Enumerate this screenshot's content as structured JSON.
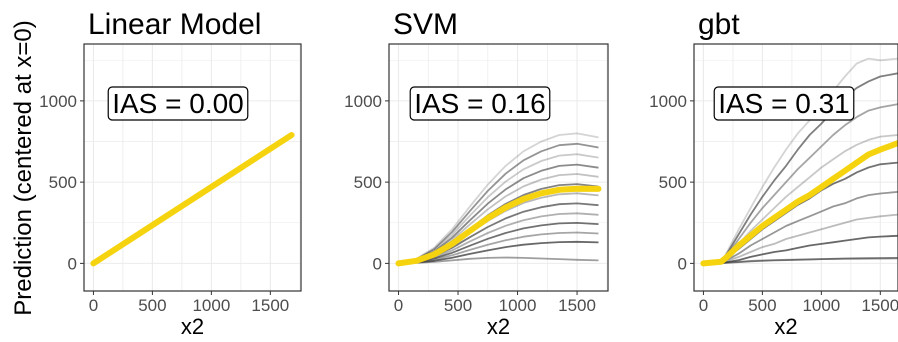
{
  "figure": {
    "shared_ylabel": "Prediction (centered at x=0)",
    "colors": {
      "highlight": "#f5d40f",
      "ice_line": "#3a3a3a",
      "grid": "#ebebeb",
      "panel_border": "#333333",
      "text": "#000000",
      "tick_text": "#4d4d4d"
    }
  },
  "chart_data": [
    {
      "type": "line",
      "title": "Linear Model",
      "annotation": "IAS = 0.00",
      "xlabel": "x2",
      "ylabel": "Prediction (centered at x=0)",
      "xlim": [
        -80,
        1760
      ],
      "ylim": [
        -170,
        1350
      ],
      "xticks": [
        0,
        500,
        1000,
        1500
      ],
      "yticks": [
        0,
        500,
        1000
      ],
      "grid": true,
      "series": [
        {
          "role": "average",
          "x": [
            0,
            1680
          ],
          "y": [
            0,
            790
          ]
        }
      ]
    },
    {
      "type": "line",
      "title": "SVM",
      "annotation": "IAS = 0.16",
      "xlabel": "x2",
      "ylabel": "",
      "xlim": [
        -80,
        1760
      ],
      "ylim": [
        -170,
        1350
      ],
      "xticks": [
        0,
        500,
        1000,
        1500
      ],
      "yticks": [
        0,
        500,
        1000
      ],
      "grid": true,
      "series": [
        {
          "role": "ice",
          "x": [
            0,
            150,
            300,
            450,
            600,
            750,
            900,
            1050,
            1200,
            1350,
            1500,
            1680
          ],
          "y": [
            0,
            28,
            96,
            210,
            350,
            485,
            600,
            690,
            750,
            790,
            800,
            775
          ]
        },
        {
          "role": "ice",
          "x": [
            0,
            150,
            300,
            450,
            600,
            750,
            900,
            1050,
            1200,
            1350,
            1500,
            1680
          ],
          "y": [
            0,
            25,
            88,
            193,
            322,
            446,
            552,
            634,
            690,
            727,
            736,
            713
          ]
        },
        {
          "role": "ice",
          "x": [
            0,
            150,
            300,
            450,
            600,
            750,
            900,
            1050,
            1200,
            1350,
            1500,
            1680
          ],
          "y": [
            0,
            23,
            80,
            175,
            294,
            407,
            503,
            579,
            630,
            663,
            672,
            651
          ]
        },
        {
          "role": "ice",
          "x": [
            0,
            150,
            300,
            450,
            600,
            750,
            900,
            1050,
            1200,
            1350,
            1500,
            1680
          ],
          "y": [
            0,
            21,
            72,
            158,
            265,
            368,
            455,
            524,
            570,
            600,
            608,
            589
          ]
        },
        {
          "role": "ice",
          "x": [
            0,
            150,
            300,
            450,
            600,
            750,
            900,
            1050,
            1200,
            1350,
            1500,
            1680
          ],
          "y": [
            0,
            19,
            65,
            143,
            240,
            333,
            412,
            474,
            516,
            543,
            550,
            533
          ]
        },
        {
          "role": "ice",
          "x": [
            0,
            150,
            300,
            450,
            600,
            750,
            900,
            1050,
            1200,
            1350,
            1500,
            1680
          ],
          "y": [
            0,
            17,
            58,
            127,
            213,
            296,
            366,
            421,
            458,
            482,
            488,
            473
          ]
        },
        {
          "role": "ice",
          "x": [
            0,
            150,
            300,
            450,
            600,
            750,
            900,
            1050,
            1200,
            1350,
            1500,
            1680
          ],
          "y": [
            0,
            15,
            51,
            112,
            188,
            261,
            323,
            372,
            404,
            425,
            431,
            418
          ]
        },
        {
          "role": "ice",
          "x": [
            0,
            150,
            300,
            450,
            600,
            750,
            900,
            1050,
            1200,
            1350,
            1500,
            1680
          ],
          "y": [
            0,
            13,
            44,
            96,
            161,
            224,
            277,
            318,
            346,
            364,
            369,
            358
          ]
        },
        {
          "role": "ice",
          "x": [
            0,
            150,
            300,
            450,
            600,
            750,
            900,
            1050,
            1200,
            1350,
            1500,
            1680
          ],
          "y": [
            0,
            11,
            37,
            80,
            135,
            187,
            231,
            266,
            289,
            304,
            308,
            299
          ]
        },
        {
          "role": "ice",
          "x": [
            0,
            150,
            300,
            450,
            600,
            750,
            900,
            1050,
            1200,
            1350,
            1500,
            1680
          ],
          "y": [
            0,
            9,
            30,
            65,
            109,
            151,
            187,
            215,
            234,
            246,
            249,
            242
          ]
        },
        {
          "role": "ice",
          "x": [
            0,
            150,
            300,
            450,
            600,
            750,
            900,
            1050,
            1200,
            1350,
            1500,
            1680
          ],
          "y": [
            0,
            7,
            23,
            50,
            83,
            115,
            142,
            164,
            178,
            187,
            190,
            184
          ]
        },
        {
          "role": "ice",
          "x": [
            0,
            150,
            300,
            450,
            600,
            750,
            900,
            1050,
            1200,
            1350,
            1500,
            1680
          ],
          "y": [
            0,
            5,
            16,
            35,
            58,
            80,
            100,
            115,
            125,
            131,
            133,
            129
          ]
        },
        {
          "role": "ice",
          "x": [
            0,
            150,
            300,
            450,
            600,
            750,
            900,
            1050,
            1200,
            1350,
            1500,
            1680
          ],
          "y": [
            0,
            3,
            9,
            18,
            28,
            34,
            36,
            34,
            30,
            26,
            22,
            18
          ]
        },
        {
          "role": "average",
          "x": [
            0,
            150,
            300,
            450,
            600,
            750,
            900,
            1050,
            1200,
            1350,
            1500,
            1680
          ],
          "y": [
            0,
            16,
            55,
            120,
            200,
            278,
            344,
            396,
            431,
            453,
            459,
            458
          ]
        }
      ]
    },
    {
      "type": "line",
      "title": "gbt",
      "annotation": "IAS = 0.31",
      "xlabel": "x2",
      "ylabel": "",
      "xlim": [
        -80,
        1650
      ],
      "ylim": [
        -170,
        1350
      ],
      "xticks": [
        0,
        500,
        1000,
        1500
      ],
      "yticks": [
        0,
        500,
        1000
      ],
      "grid": true,
      "series": [
        {
          "role": "ice",
          "x": [
            0,
            150,
            200,
            300,
            400,
            500,
            600,
            700,
            800,
            900,
            1000,
            1100,
            1200,
            1300,
            1400,
            1500,
            1650
          ],
          "y": [
            0,
            10,
            70,
            210,
            340,
            470,
            590,
            700,
            800,
            880,
            960,
            1060,
            1150,
            1230,
            1260,
            1250,
            1260
          ]
        },
        {
          "role": "ice",
          "x": [
            0,
            150,
            200,
            300,
            400,
            500,
            600,
            700,
            800,
            900,
            1000,
            1100,
            1200,
            1300,
            1400,
            1500,
            1650
          ],
          "y": [
            0,
            8,
            60,
            180,
            300,
            410,
            510,
            600,
            700,
            790,
            860,
            940,
            1020,
            1080,
            1120,
            1150,
            1170
          ]
        },
        {
          "role": "ice",
          "x": [
            0,
            150,
            200,
            300,
            400,
            500,
            600,
            700,
            800,
            900,
            1000,
            1100,
            1200,
            1300,
            1400,
            1500,
            1650
          ],
          "y": [
            0,
            7,
            50,
            150,
            250,
            340,
            420,
            500,
            580,
            650,
            720,
            790,
            850,
            900,
            940,
            960,
            980
          ]
        },
        {
          "role": "ice",
          "x": [
            0,
            150,
            200,
            300,
            400,
            500,
            600,
            700,
            800,
            900,
            1000,
            1100,
            1200,
            1300,
            1400,
            1500,
            1650
          ],
          "y": [
            0,
            6,
            40,
            120,
            200,
            270,
            340,
            410,
            470,
            530,
            590,
            640,
            690,
            730,
            760,
            780,
            790
          ]
        },
        {
          "role": "ice",
          "x": [
            0,
            150,
            200,
            300,
            400,
            500,
            600,
            700,
            800,
            900,
            1000,
            1100,
            1200,
            1300,
            1400,
            1500,
            1650
          ],
          "y": [
            0,
            5,
            30,
            90,
            150,
            210,
            260,
            310,
            360,
            400,
            450,
            490,
            520,
            560,
            590,
            610,
            620
          ]
        },
        {
          "role": "ice",
          "x": [
            0,
            150,
            200,
            300,
            400,
            500,
            600,
            700,
            800,
            900,
            1000,
            1100,
            1200,
            1300,
            1400,
            1500,
            1650
          ],
          "y": [
            0,
            4,
            22,
            60,
            110,
            150,
            190,
            230,
            260,
            290,
            320,
            350,
            370,
            400,
            420,
            430,
            440
          ]
        },
        {
          "role": "ice",
          "x": [
            0,
            150,
            200,
            300,
            400,
            500,
            600,
            700,
            800,
            900,
            1000,
            1100,
            1200,
            1300,
            1400,
            1500,
            1650
          ],
          "y": [
            0,
            3,
            15,
            40,
            70,
            100,
            120,
            150,
            170,
            190,
            210,
            230,
            250,
            270,
            280,
            290,
            300
          ]
        },
        {
          "role": "ice",
          "x": [
            0,
            150,
            200,
            300,
            400,
            500,
            600,
            700,
            800,
            900,
            1000,
            1100,
            1200,
            1300,
            1400,
            1500,
            1650
          ],
          "y": [
            0,
            2,
            8,
            20,
            40,
            55,
            70,
            80,
            95,
            110,
            120,
            130,
            140,
            150,
            160,
            165,
            170
          ]
        },
        {
          "role": "ice",
          "x": [
            0,
            150,
            200,
            300,
            400,
            500,
            600,
            700,
            800,
            900,
            1000,
            1100,
            1200,
            1300,
            1400,
            1500,
            1650
          ],
          "y": [
            0,
            1,
            3,
            8,
            12,
            15,
            18,
            20,
            22,
            24,
            26,
            28,
            30,
            31,
            32,
            33,
            34
          ]
        },
        {
          "role": "ice",
          "x": [
            0,
            150,
            200,
            300,
            400,
            500,
            600,
            700,
            800,
            900,
            1000,
            1100,
            1200,
            1300,
            1400,
            1500,
            1650
          ],
          "y": [
            0,
            2,
            6,
            10,
            15,
            18,
            20,
            22,
            24,
            25,
            26,
            27,
            28,
            28,
            29,
            29,
            30
          ]
        },
        {
          "role": "average",
          "x": [
            0,
            150,
            200,
            300,
            400,
            500,
            600,
            700,
            800,
            900,
            1000,
            1100,
            1200,
            1300,
            1400,
            1500,
            1650
          ],
          "y": [
            0,
            10,
            40,
            110,
            170,
            230,
            280,
            330,
            380,
            420,
            470,
            520,
            570,
            620,
            670,
            700,
            740
          ]
        }
      ]
    }
  ]
}
